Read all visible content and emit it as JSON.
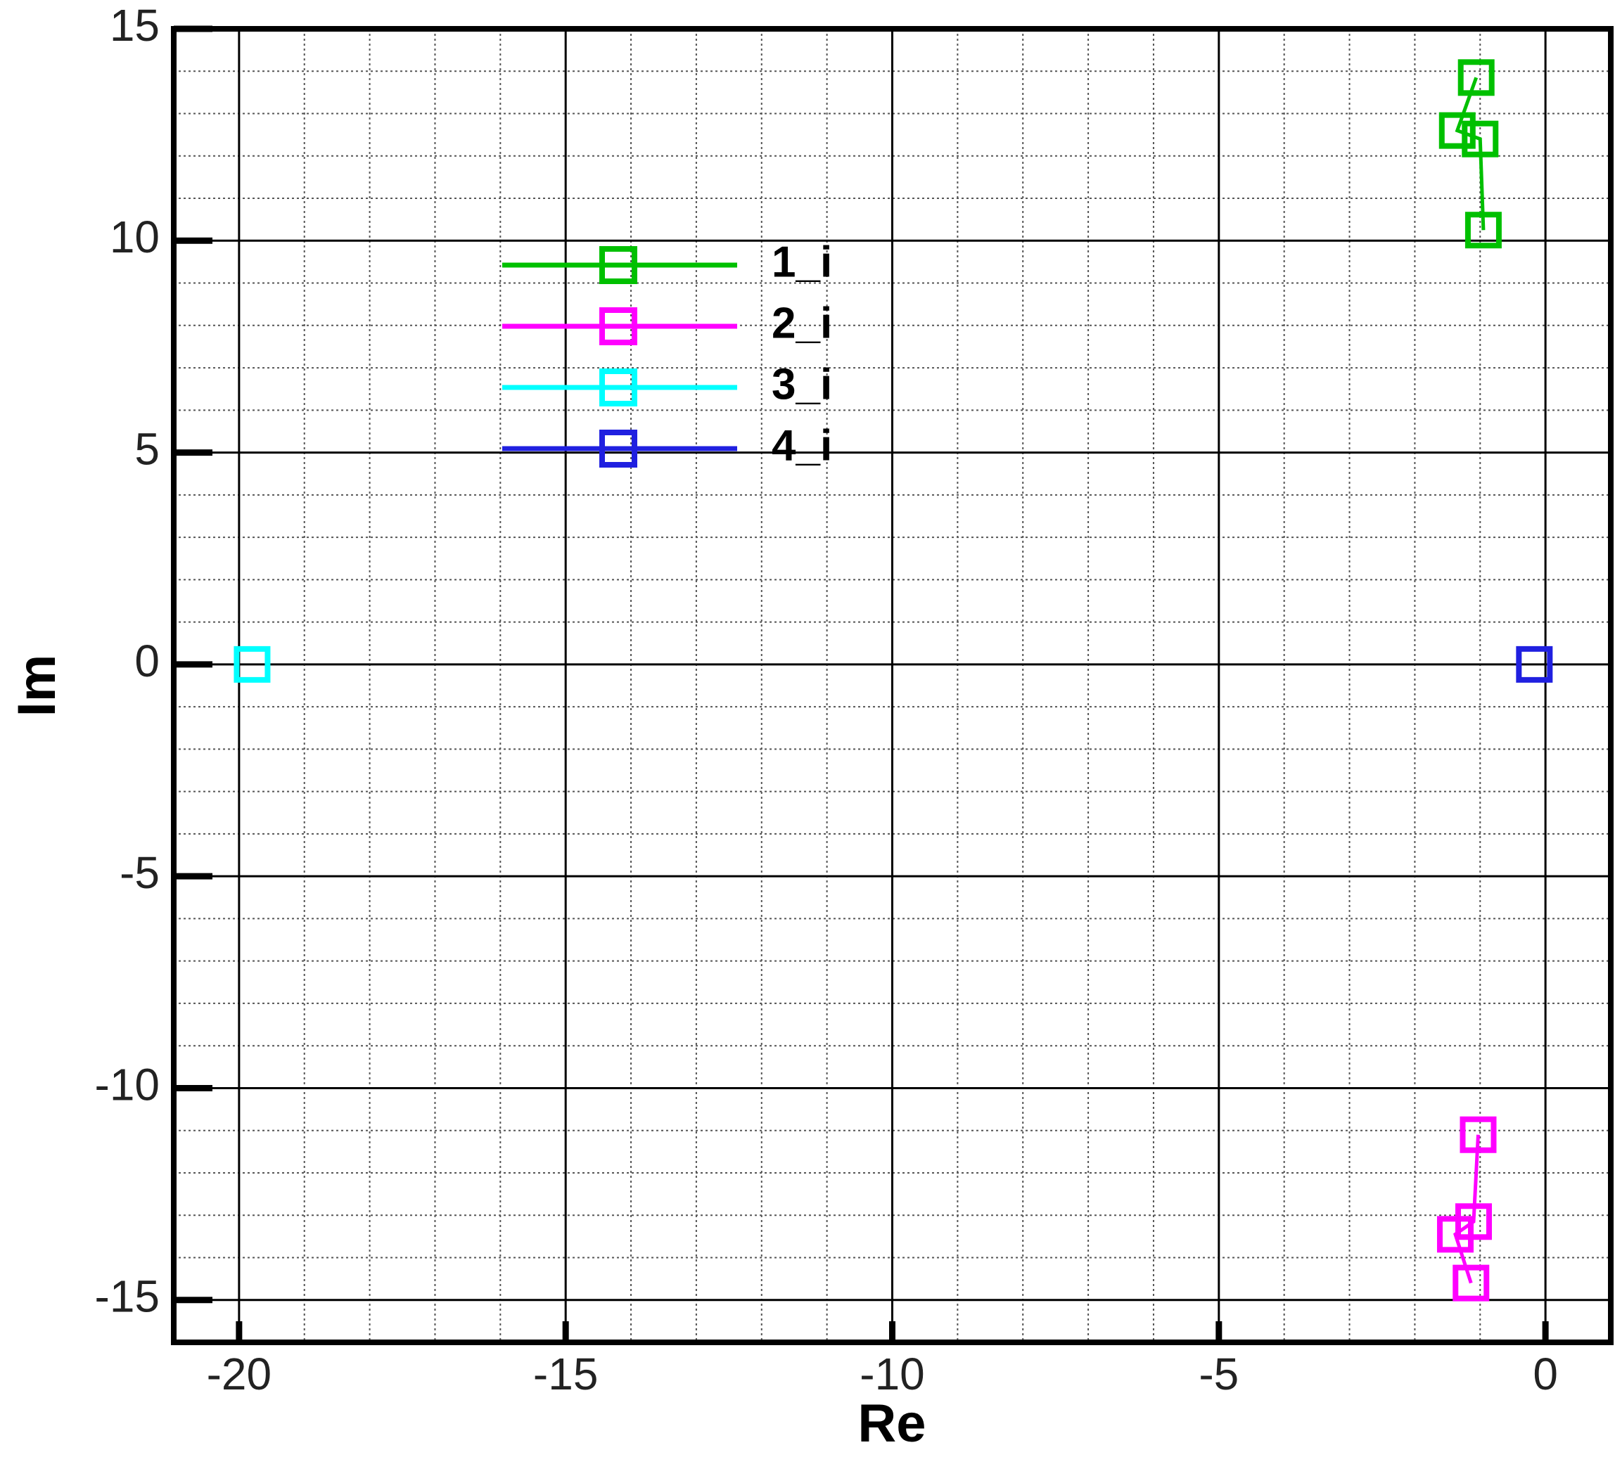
{
  "chart_data": {
    "type": "scatter-line",
    "x_label": "Re",
    "y_label": "Im",
    "xlim": [
      -21,
      1
    ],
    "ylim": [
      -16,
      15
    ],
    "xticks": [
      -20,
      -15,
      -10,
      -5,
      0
    ],
    "yticks": [
      -15,
      -10,
      -5,
      0,
      5,
      10,
      15
    ],
    "xminorticks": [
      -21,
      -19,
      -18,
      -17,
      -16,
      -14,
      -13,
      -12,
      -11,
      -9,
      -8,
      -7,
      -6,
      -4,
      -3,
      -2,
      -1,
      1
    ],
    "yminorticks": [
      -16,
      -14,
      -13,
      -12,
      -11,
      -9,
      -8,
      -7,
      -6,
      -4,
      -3,
      -2,
      -1,
      1,
      2,
      3,
      4,
      6,
      7,
      8,
      9,
      11,
      12,
      13,
      14
    ],
    "grid": true,
    "series": [
      {
        "name": "1_i",
        "color": "#00c000",
        "x": [
          -1.06,
          -1.35,
          -1.0,
          -0.95
        ],
        "values": [
          13.85,
          12.6,
          12.4,
          10.25
        ]
      },
      {
        "name": "2_i",
        "color": "#ff00ff",
        "x": [
          -1.03,
          -1.1,
          -1.38,
          -1.14
        ],
        "values": [
          -11.1,
          -13.15,
          -13.45,
          -14.6
        ]
      },
      {
        "name": "3_i",
        "color": "#00ffff",
        "x": [
          -19.8
        ],
        "values": [
          0
        ]
      },
      {
        "name": "4_i",
        "color": "#2020e0",
        "x": [
          -0.17
        ],
        "values": [
          0
        ]
      }
    ]
  }
}
